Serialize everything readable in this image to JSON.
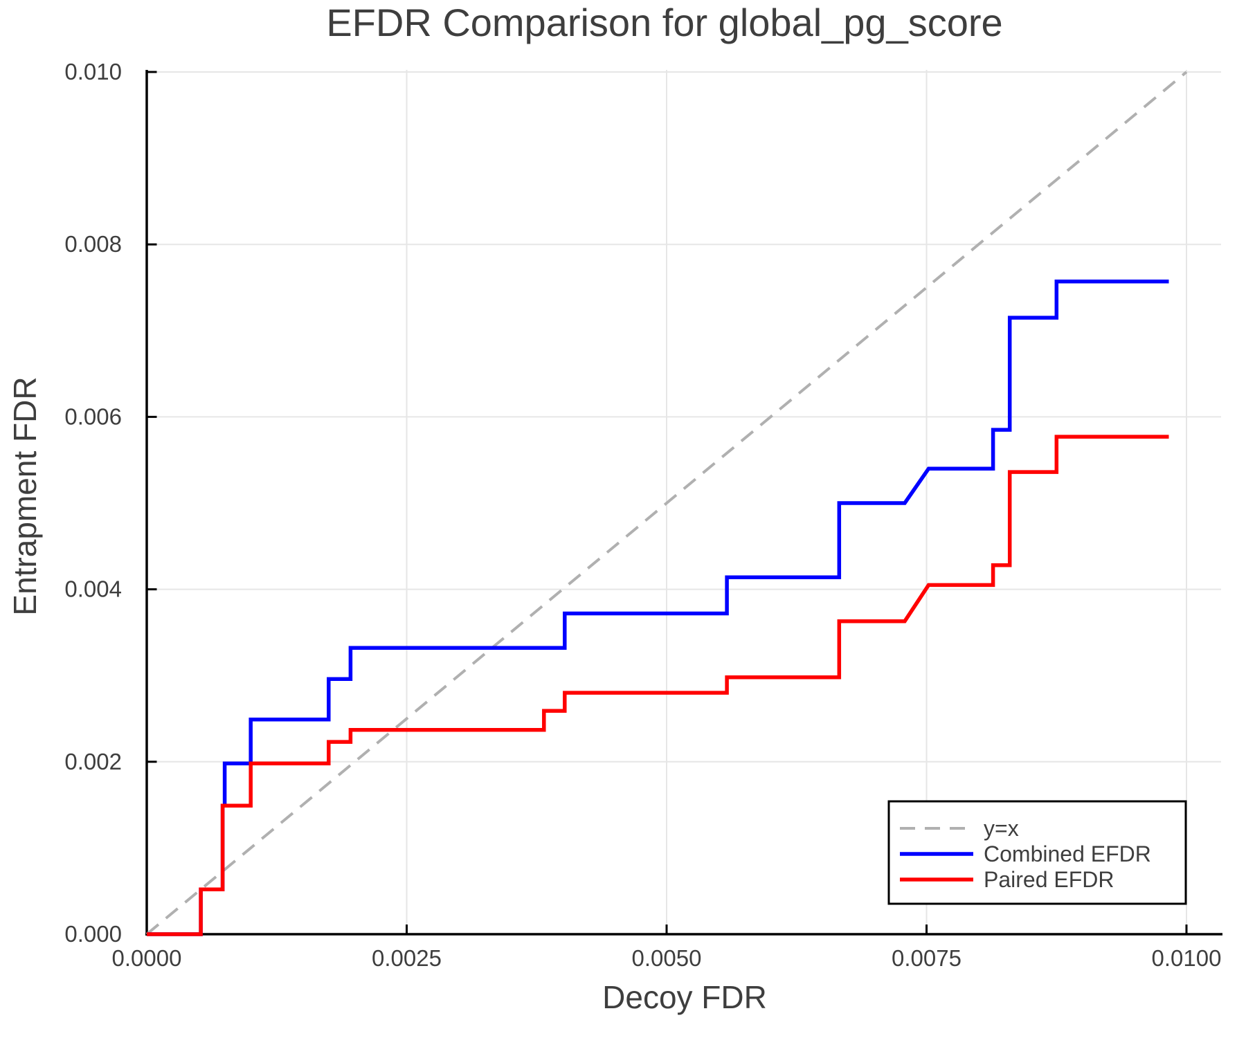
{
  "title": "EFDR Comparison for global_pg_score",
  "axes": {
    "x": {
      "label": "Decoy FDR",
      "tick_values": [
        0,
        0.0025,
        0.005,
        0.0075,
        0.01
      ],
      "tick_labels": [
        "0.0000",
        "0.0025",
        "0.0050",
        "0.0075",
        "0.0100"
      ]
    },
    "y": {
      "label": "Entrapment FDR",
      "tick_values": [
        0,
        0.002,
        0.004,
        0.006,
        0.008,
        0.01
      ],
      "tick_labels": [
        "0.000",
        "0.002",
        "0.004",
        "0.006",
        "0.008",
        "0.010"
      ]
    }
  },
  "legend": {
    "items": [
      {
        "label": "y=x",
        "style": "dashed",
        "color": "#b0b0b0"
      },
      {
        "label": "Combined EFDR",
        "style": "solid",
        "color": "#0000ff"
      },
      {
        "label": "Paired EFDR",
        "style": "solid",
        "color": "#ff0000"
      }
    ]
  },
  "colors": {
    "combined": "#0000ff",
    "paired": "#ff0000",
    "identity": "#b0b0b0",
    "grid": "#e6e6e6",
    "spine": "#000000",
    "text": "#3e3e3e"
  },
  "chart_data": {
    "type": "line",
    "title": "EFDR Comparison for global_pg_score",
    "xlabel": "Decoy FDR",
    "ylabel": "Entrapment FDR",
    "xlim": [
      0,
      0.01
    ],
    "ylim": [
      0,
      0.01
    ],
    "grid": true,
    "legend_position": "lower right",
    "series": [
      {
        "name": "y=x",
        "color": "#b0b0b0",
        "style": "dashed",
        "points": [
          [
            0,
            0
          ],
          [
            0.01,
            0.01
          ]
        ]
      },
      {
        "name": "Combined EFDR",
        "color": "#0000ff",
        "style": "solid",
        "points": [
          [
            0,
            0
          ],
          [
            0.00052,
            0
          ],
          [
            0.00052,
            0.00052
          ],
          [
            0.00073,
            0.00052
          ],
          [
            0.00073,
            0.00149
          ],
          [
            0.00075,
            0.00149
          ],
          [
            0.00075,
            0.00198
          ],
          [
            0.001,
            0.00198
          ],
          [
            0.001,
            0.00249
          ],
          [
            0.00175,
            0.00249
          ],
          [
            0.00175,
            0.00296
          ],
          [
            0.00196,
            0.00296
          ],
          [
            0.00196,
            0.00332
          ],
          [
            0.00402,
            0.00332
          ],
          [
            0.00402,
            0.00372
          ],
          [
            0.00558,
            0.00372
          ],
          [
            0.00558,
            0.00414
          ],
          [
            0.00666,
            0.00414
          ],
          [
            0.00666,
            0.005
          ],
          [
            0.00729,
            0.005
          ],
          [
            0.00752,
            0.0054
          ],
          [
            0.00814,
            0.0054
          ],
          [
            0.00814,
            0.00585
          ],
          [
            0.0083,
            0.00585
          ],
          [
            0.0083,
            0.00715
          ],
          [
            0.00875,
            0.00715
          ],
          [
            0.00875,
            0.00757
          ],
          [
            0.00983,
            0.00757
          ]
        ]
      },
      {
        "name": "Paired EFDR",
        "color": "#ff0000",
        "style": "solid",
        "points": [
          [
            0,
            0
          ],
          [
            0.00052,
            0
          ],
          [
            0.00052,
            0.00052
          ],
          [
            0.00073,
            0.00052
          ],
          [
            0.00073,
            0.00149
          ],
          [
            0.001,
            0.00149
          ],
          [
            0.001,
            0.00198
          ],
          [
            0.00175,
            0.00198
          ],
          [
            0.00175,
            0.00223
          ],
          [
            0.00196,
            0.00223
          ],
          [
            0.00196,
            0.00237
          ],
          [
            0.00382,
            0.00237
          ],
          [
            0.00382,
            0.00259
          ],
          [
            0.00402,
            0.00259
          ],
          [
            0.00402,
            0.0028
          ],
          [
            0.00558,
            0.0028
          ],
          [
            0.00558,
            0.00298
          ],
          [
            0.00666,
            0.00298
          ],
          [
            0.00666,
            0.00363
          ],
          [
            0.00729,
            0.00363
          ],
          [
            0.00752,
            0.00405
          ],
          [
            0.00814,
            0.00405
          ],
          [
            0.00814,
            0.00428
          ],
          [
            0.0083,
            0.00428
          ],
          [
            0.0083,
            0.00536
          ],
          [
            0.00875,
            0.00536
          ],
          [
            0.00875,
            0.00577
          ],
          [
            0.00983,
            0.00577
          ]
        ]
      }
    ]
  }
}
